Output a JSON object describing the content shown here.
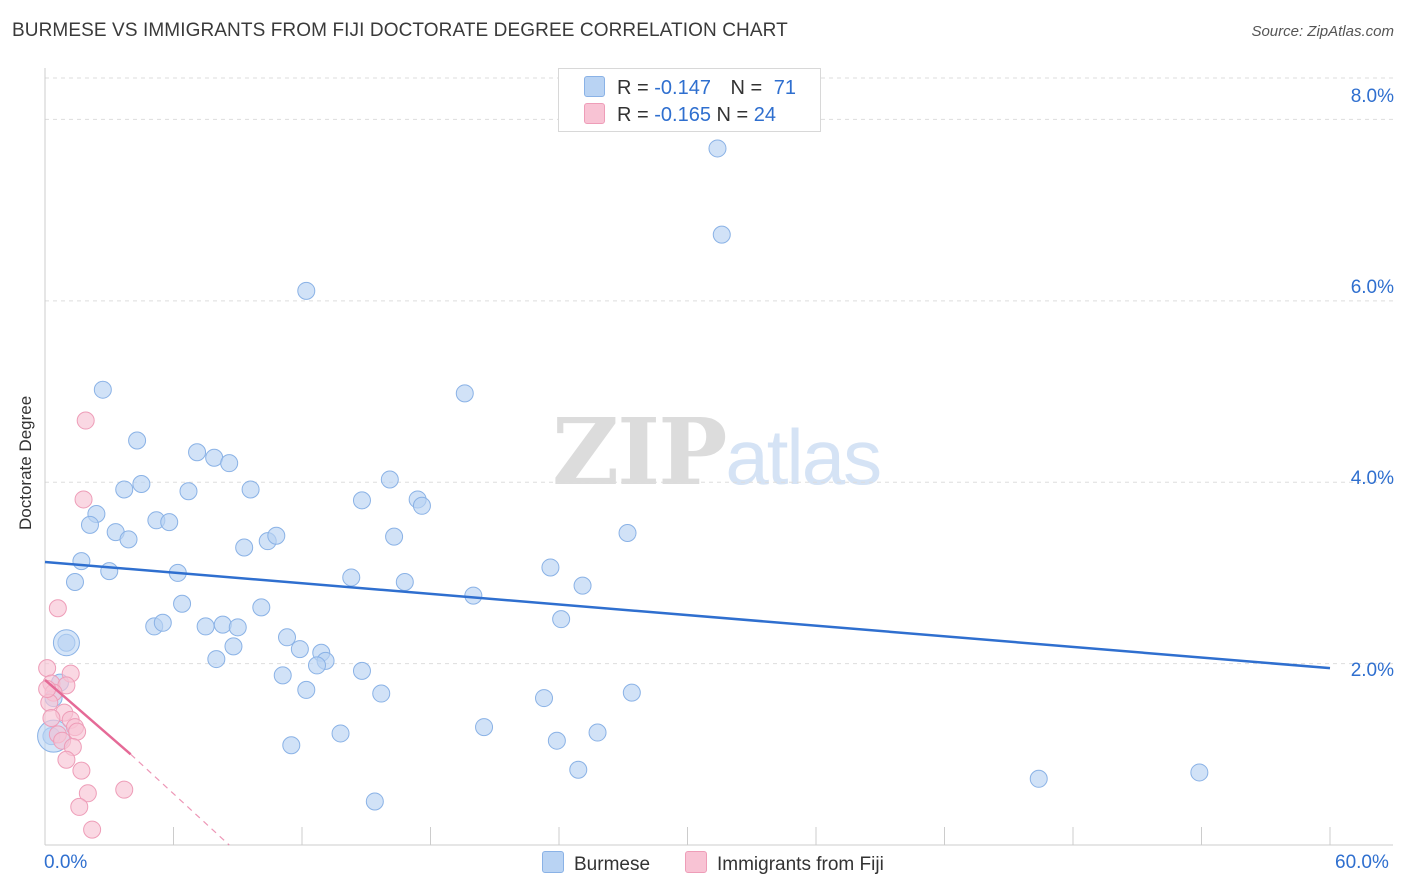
{
  "header": {
    "title": "BURMESE VS IMMIGRANTS FROM FIJI DOCTORATE DEGREE CORRELATION CHART",
    "source": "Source: ZipAtlas.com"
  },
  "watermark": {
    "zip": "ZIP",
    "atlas": "atlas"
  },
  "legend": {
    "rows": [
      {
        "r_label": "R = ",
        "r_value": "-0.147",
        "n_label": "N = ",
        "n_value": "71",
        "color": "#a9c9f3"
      },
      {
        "r_label": "R = ",
        "r_value": "-0.165",
        "n_label": "N = ",
        "n_value": "24",
        "color": "#f8bcd0"
      }
    ]
  },
  "colors": {
    "burmese_fill": "#b9d3f3",
    "burmese_stroke": "#8ab2e6",
    "burmese_line": "#2f6fcf",
    "fiji_fill": "#f8c3d4",
    "fiji_stroke": "#ee9db8",
    "fiji_line": "#e56a97",
    "grid": "#dddddd",
    "axis": "#cccccc",
    "tick_label": "#2f6fcf"
  },
  "chart_data": {
    "type": "scatter",
    "title": "BURMESE VS IMMIGRANTS FROM FIJI DOCTORATE DEGREE CORRELATION CHART",
    "xlabel": "",
    "ylabel": "Doctorate Degree",
    "xlim": [
      0,
      60
    ],
    "ylim": [
      0,
      8.6
    ],
    "x_tick_labels": [
      "0.0%",
      "60.0%"
    ],
    "y_ticks": [
      2.0,
      4.0,
      6.0,
      8.0
    ],
    "y_tick_labels": [
      "2.0%",
      "4.0%",
      "6.0%",
      "8.0%"
    ],
    "grid": true,
    "series": [
      {
        "name": "Burmese",
        "R": -0.147,
        "N": 71,
        "trend": {
          "x0": 0,
          "y0": 3.12,
          "x1": 60,
          "y1": 1.95
        },
        "points": [
          [
            2.7,
            5.02
          ],
          [
            4.3,
            4.46
          ],
          [
            7.1,
            4.33
          ],
          [
            7.9,
            4.27
          ],
          [
            8.6,
            4.21
          ],
          [
            3.7,
            3.92
          ],
          [
            4.5,
            3.98
          ],
          [
            6.7,
            3.9
          ],
          [
            9.6,
            3.92
          ],
          [
            2.4,
            3.65
          ],
          [
            2.1,
            3.53
          ],
          [
            3.3,
            3.45
          ],
          [
            5.2,
            3.58
          ],
          [
            5.8,
            3.56
          ],
          [
            3.9,
            3.37
          ],
          [
            9.3,
            3.28
          ],
          [
            10.4,
            3.35
          ],
          [
            10.8,
            3.41
          ],
          [
            1.7,
            3.13
          ],
          [
            3.0,
            3.02
          ],
          [
            6.2,
            3.0
          ],
          [
            1.4,
            2.9
          ],
          [
            6.4,
            2.66
          ],
          [
            10.1,
            2.62
          ],
          [
            5.1,
            2.41
          ],
          [
            5.5,
            2.45
          ],
          [
            7.5,
            2.41
          ],
          [
            8.3,
            2.43
          ],
          [
            9.0,
            2.4
          ],
          [
            11.3,
            2.29
          ],
          [
            1.0,
            2.23
          ],
          [
            8.0,
            2.05
          ],
          [
            12.9,
            2.12
          ],
          [
            11.9,
            2.16
          ],
          [
            13.1,
            2.03
          ],
          [
            8.8,
            2.19
          ],
          [
            11.1,
            1.87
          ],
          [
            12.7,
            1.98
          ],
          [
            14.8,
            1.92
          ],
          [
            12.2,
            1.71
          ],
          [
            15.7,
            1.67
          ],
          [
            14.3,
            2.95
          ],
          [
            16.8,
            2.9
          ],
          [
            14.8,
            3.8
          ],
          [
            16.3,
            3.4
          ],
          [
            16.1,
            4.03
          ],
          [
            17.4,
            3.81
          ],
          [
            17.6,
            3.74
          ],
          [
            19.6,
            4.98
          ],
          [
            20.0,
            2.75
          ],
          [
            23.6,
            3.06
          ],
          [
            25.1,
            2.86
          ],
          [
            24.1,
            2.49
          ],
          [
            27.2,
            3.44
          ],
          [
            31.6,
            6.73
          ],
          [
            12.2,
            6.11
          ],
          [
            11.5,
            1.1
          ],
          [
            13.8,
            1.23
          ],
          [
            15.4,
            0.48
          ],
          [
            20.5,
            1.3
          ],
          [
            23.3,
            1.62
          ],
          [
            23.9,
            1.15
          ],
          [
            24.9,
            0.83
          ],
          [
            25.8,
            1.24
          ],
          [
            27.4,
            1.68
          ],
          [
            46.4,
            0.73
          ],
          [
            53.9,
            0.8
          ],
          [
            31.4,
            7.68
          ],
          [
            0.3,
            1.2
          ],
          [
            0.7,
            1.79
          ],
          [
            0.4,
            1.62
          ]
        ]
      },
      {
        "name": "Immigrants from Fiji",
        "R": -0.165,
        "N": 24,
        "trend": {
          "x0": 0,
          "y0": 1.82,
          "x1": 4.0,
          "y1": 1.0
        },
        "trend_dashed": {
          "x0": 4.0,
          "y0": 1.0,
          "x1": 8.6,
          "y1": 0.0
        },
        "points": [
          [
            1.9,
            4.68
          ],
          [
            1.8,
            3.81
          ],
          [
            0.6,
            2.61
          ],
          [
            0.1,
            1.95
          ],
          [
            1.2,
            1.89
          ],
          [
            0.3,
            1.78
          ],
          [
            1.0,
            1.76
          ],
          [
            0.4,
            1.68
          ],
          [
            0.2,
            1.57
          ],
          [
            0.9,
            1.46
          ],
          [
            0.3,
            1.4
          ],
          [
            1.2,
            1.38
          ],
          [
            1.4,
            1.3
          ],
          [
            1.5,
            1.25
          ],
          [
            0.6,
            1.22
          ],
          [
            0.8,
            1.15
          ],
          [
            1.3,
            1.08
          ],
          [
            1.0,
            0.94
          ],
          [
            1.7,
            0.82
          ],
          [
            3.7,
            0.61
          ],
          [
            2.0,
            0.57
          ],
          [
            1.6,
            0.42
          ],
          [
            2.2,
            0.17
          ],
          [
            0.1,
            1.72
          ]
        ]
      }
    ]
  },
  "bottom_legend": {
    "burmese_label": "Burmese",
    "fiji_label": "Immigrants from Fiji"
  }
}
